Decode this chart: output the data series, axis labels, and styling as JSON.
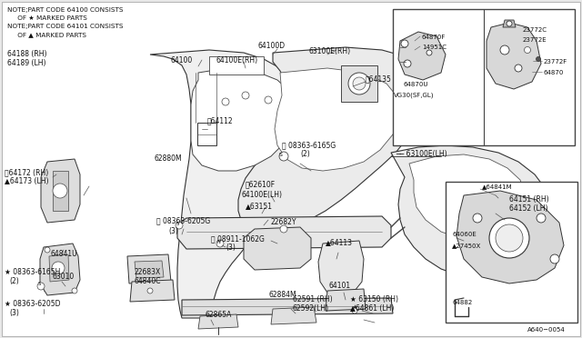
{
  "bg_color": "#e8e8e8",
  "white": "#ffffff",
  "black": "#000000",
  "dark_gray": "#333333",
  "mid_gray": "#888888",
  "light_gray": "#cccccc",
  "notes": [
    "NOTE;PART CODE 64100 CONSISTS",
    "     OF ★ MARKED PARTS",
    "NOTE;PART CODE 64101 CONSISTS",
    "     OF ▲ MARKED PARTS"
  ],
  "part_code": "A640−0054",
  "figsize": [
    6.4,
    3.72
  ],
  "dpi": 100
}
